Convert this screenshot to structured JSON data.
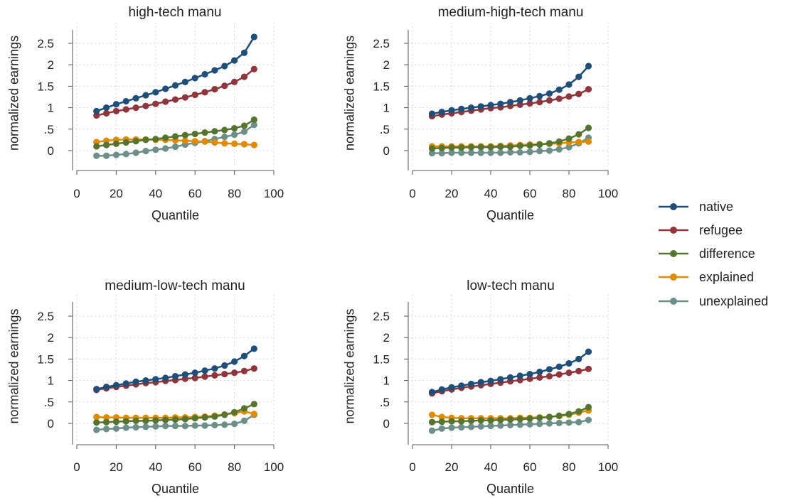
{
  "legend": {
    "placement": "right",
    "items": [
      {
        "name": "native",
        "color": "#1f4e79"
      },
      {
        "name": "refugee",
        "color": "#90353b"
      },
      {
        "name": "difference",
        "color": "#55752f"
      },
      {
        "name": "explained",
        "color": "#e08a00"
      },
      {
        "name": "unexplained",
        "color": "#6d8f8a"
      }
    ]
  },
  "chart_data": [
    {
      "type": "line",
      "title": "high-tech manu",
      "xlabel": "Quantile",
      "ylabel": "normalized earnings",
      "xlim": [
        0,
        100
      ],
      "ylim": [
        -0.5,
        2.5
      ],
      "xticks": [
        "0",
        "20",
        "40",
        "60",
        "80",
        "100"
      ],
      "yticks": [
        "0",
        ".5",
        "1",
        "1.5",
        "2",
        "2.5"
      ],
      "grid": true,
      "x": [
        10,
        15,
        20,
        25,
        30,
        35,
        40,
        45,
        50,
        55,
        60,
        65,
        70,
        75,
        80,
        85,
        90
      ],
      "series": [
        {
          "name": "native",
          "values": [
            0.92,
            1.0,
            1.08,
            1.15,
            1.22,
            1.29,
            1.36,
            1.44,
            1.52,
            1.6,
            1.69,
            1.78,
            1.87,
            1.97,
            2.1,
            2.28,
            2.65
          ]
        },
        {
          "name": "refugee",
          "values": [
            0.82,
            0.87,
            0.92,
            0.96,
            1.0,
            1.04,
            1.09,
            1.14,
            1.19,
            1.24,
            1.3,
            1.36,
            1.43,
            1.51,
            1.6,
            1.72,
            1.9
          ]
        },
        {
          "name": "difference",
          "values": [
            0.1,
            0.13,
            0.16,
            0.19,
            0.22,
            0.25,
            0.27,
            0.3,
            0.33,
            0.36,
            0.39,
            0.42,
            0.45,
            0.48,
            0.52,
            0.58,
            0.72
          ]
        },
        {
          "name": "explained",
          "values": [
            0.2,
            0.23,
            0.25,
            0.26,
            0.26,
            0.26,
            0.25,
            0.25,
            0.24,
            0.23,
            0.22,
            0.21,
            0.19,
            0.17,
            0.16,
            0.15,
            0.13
          ]
        },
        {
          "name": "unexplained",
          "values": [
            -0.12,
            -0.12,
            -0.1,
            -0.08,
            -0.05,
            -0.01,
            0.02,
            0.05,
            0.09,
            0.14,
            0.18,
            0.22,
            0.27,
            0.32,
            0.37,
            0.44,
            0.6
          ]
        }
      ]
    },
    {
      "type": "line",
      "title": "medium-high-tech manu",
      "xlabel": "Quantile",
      "ylabel": "normalized earnings",
      "xlim": [
        0,
        100
      ],
      "ylim": [
        -0.5,
        2.5
      ],
      "xticks": [
        "0",
        "20",
        "40",
        "60",
        "80",
        "100"
      ],
      "yticks": [
        "0",
        ".5",
        "1",
        "1.5",
        "2",
        "2.5"
      ],
      "grid": true,
      "x": [
        10,
        15,
        20,
        25,
        30,
        35,
        40,
        45,
        50,
        55,
        60,
        65,
        70,
        75,
        80,
        85,
        90
      ],
      "series": [
        {
          "name": "native",
          "values": [
            0.86,
            0.9,
            0.94,
            0.97,
            1.0,
            1.03,
            1.06,
            1.09,
            1.13,
            1.17,
            1.22,
            1.27,
            1.33,
            1.42,
            1.54,
            1.72,
            1.97
          ]
        },
        {
          "name": "refugee",
          "values": [
            0.8,
            0.84,
            0.87,
            0.9,
            0.93,
            0.96,
            0.99,
            1.01,
            1.04,
            1.07,
            1.1,
            1.13,
            1.17,
            1.21,
            1.26,
            1.32,
            1.43
          ]
        },
        {
          "name": "difference",
          "values": [
            0.05,
            0.06,
            0.07,
            0.07,
            0.08,
            0.08,
            0.08,
            0.09,
            0.09,
            0.11,
            0.12,
            0.14,
            0.17,
            0.21,
            0.28,
            0.38,
            0.53
          ]
        },
        {
          "name": "explained",
          "values": [
            0.1,
            0.1,
            0.1,
            0.1,
            0.1,
            0.1,
            0.1,
            0.11,
            0.12,
            0.13,
            0.14,
            0.15,
            0.16,
            0.17,
            0.19,
            0.2,
            0.21
          ]
        },
        {
          "name": "unexplained",
          "values": [
            -0.06,
            -0.06,
            -0.05,
            -0.05,
            -0.05,
            -0.05,
            -0.05,
            -0.05,
            -0.04,
            -0.04,
            -0.03,
            -0.01,
            0.0,
            0.03,
            0.08,
            0.17,
            0.3
          ]
        }
      ]
    },
    {
      "type": "line",
      "title": "medium-low-tech manu",
      "xlabel": "Quantile",
      "ylabel": "normalized earnings",
      "xlim": [
        0,
        100
      ],
      "ylim": [
        -0.5,
        2.5
      ],
      "xticks": [
        "0",
        "20",
        "40",
        "60",
        "80",
        "100"
      ],
      "yticks": [
        "0",
        ".5",
        "1",
        "1.5",
        "2",
        "2.5"
      ],
      "grid": true,
      "x": [
        10,
        15,
        20,
        25,
        30,
        35,
        40,
        45,
        50,
        55,
        60,
        65,
        70,
        75,
        80,
        85,
        90
      ],
      "series": [
        {
          "name": "native",
          "values": [
            0.8,
            0.85,
            0.89,
            0.93,
            0.97,
            1.0,
            1.03,
            1.06,
            1.1,
            1.14,
            1.18,
            1.23,
            1.28,
            1.35,
            1.44,
            1.57,
            1.74
          ]
        },
        {
          "name": "refugee",
          "values": [
            0.78,
            0.82,
            0.85,
            0.88,
            0.91,
            0.94,
            0.96,
            0.99,
            1.01,
            1.04,
            1.06,
            1.09,
            1.12,
            1.15,
            1.18,
            1.22,
            1.28
          ]
        },
        {
          "name": "difference",
          "values": [
            0.02,
            0.03,
            0.04,
            0.05,
            0.06,
            0.06,
            0.07,
            0.08,
            0.09,
            0.1,
            0.12,
            0.14,
            0.16,
            0.2,
            0.26,
            0.35,
            0.45
          ]
        },
        {
          "name": "explained",
          "values": [
            0.15,
            0.14,
            0.14,
            0.13,
            0.13,
            0.13,
            0.13,
            0.13,
            0.14,
            0.14,
            0.15,
            0.16,
            0.18,
            0.21,
            0.24,
            0.28,
            0.22
          ]
        },
        {
          "name": "unexplained",
          "values": [
            -0.15,
            -0.13,
            -0.12,
            -0.1,
            -0.09,
            -0.08,
            -0.07,
            -0.06,
            -0.06,
            -0.06,
            -0.05,
            -0.05,
            -0.04,
            -0.03,
            -0.01,
            0.06,
            0.2
          ]
        }
      ]
    },
    {
      "type": "line",
      "title": "low-tech manu",
      "xlabel": "Quantile",
      "ylabel": "normalized earnings",
      "xlim": [
        0,
        100
      ],
      "ylim": [
        -0.5,
        2.5
      ],
      "xticks": [
        "0",
        "20",
        "40",
        "60",
        "80",
        "100"
      ],
      "yticks": [
        "0",
        ".5",
        "1",
        "1.5",
        "2",
        "2.5"
      ],
      "grid": true,
      "x": [
        10,
        15,
        20,
        25,
        30,
        35,
        40,
        45,
        50,
        55,
        60,
        65,
        70,
        75,
        80,
        85,
        90
      ],
      "series": [
        {
          "name": "native",
          "values": [
            0.73,
            0.79,
            0.84,
            0.88,
            0.92,
            0.96,
            0.99,
            1.03,
            1.07,
            1.11,
            1.15,
            1.2,
            1.26,
            1.32,
            1.4,
            1.5,
            1.67
          ]
        },
        {
          "name": "refugee",
          "values": [
            0.7,
            0.75,
            0.79,
            0.83,
            0.86,
            0.89,
            0.92,
            0.95,
            0.98,
            1.01,
            1.04,
            1.07,
            1.1,
            1.14,
            1.18,
            1.22,
            1.27
          ]
        },
        {
          "name": "difference",
          "values": [
            0.03,
            0.04,
            0.05,
            0.05,
            0.06,
            0.07,
            0.07,
            0.08,
            0.09,
            0.1,
            0.11,
            0.13,
            0.15,
            0.18,
            0.22,
            0.28,
            0.38
          ]
        },
        {
          "name": "explained",
          "values": [
            0.2,
            0.15,
            0.13,
            0.12,
            0.12,
            0.12,
            0.12,
            0.12,
            0.12,
            0.13,
            0.13,
            0.14,
            0.15,
            0.17,
            0.2,
            0.25,
            0.3
          ]
        },
        {
          "name": "unexplained",
          "values": [
            -0.17,
            -0.12,
            -0.1,
            -0.09,
            -0.08,
            -0.07,
            -0.06,
            -0.05,
            -0.04,
            -0.03,
            -0.02,
            -0.01,
            0.0,
            0.01,
            0.02,
            0.03,
            0.08
          ]
        }
      ]
    }
  ]
}
